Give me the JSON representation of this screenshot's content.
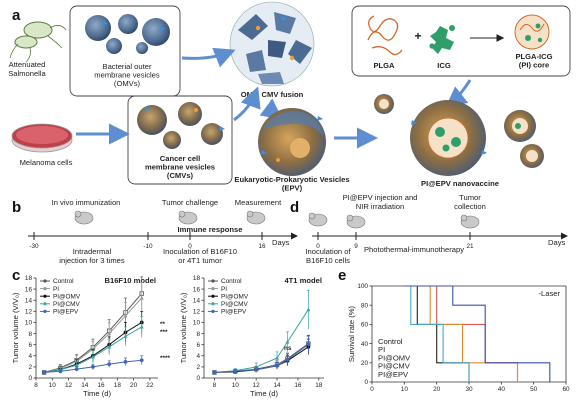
{
  "panel_letters": {
    "a": "a",
    "b": "b",
    "c": "c",
    "d": "d",
    "e": "e"
  },
  "panel_a": {
    "salmonella": "Attenuated\nSalmonella",
    "omv_label": "Bacterial outer\nmembrane vesicles\n(OMVs)",
    "fusion_label": "OMV, CMV fusion",
    "plga": "PLGA",
    "plus": "+",
    "icg": "ICG",
    "core": "PLGA-ICG\n(PI) core",
    "melanoma": "Melanoma cells",
    "cmv_label": "Cancer cell\nmembrane vesicles\n(CMVs)",
    "epv_label": "Eukaryotic-Prokaryotic Vesicles\n(EPV)",
    "vaccine_label": "PI@EPV nanovaccine"
  },
  "panel_b": {
    "in_vivo": "In vivo immunization",
    "challenge": "Tumor challenge",
    "measurement": "Measurement",
    "immune": "Immune response",
    "ticks": [
      "-30",
      "-10",
      "0",
      "16"
    ],
    "unit": "Days",
    "injection": "Intradermal\ninjection for 3 times",
    "inoculation": "Inoculation of B16F10\nor 4T1 tumor"
  },
  "panel_d": {
    "injection": "PI@EPV injection and\nNIR irradiation",
    "collection": "Tumor\ncollection",
    "ticks": [
      "0",
      "9",
      "21"
    ],
    "unit": "Days",
    "inoculation": "Inoculation of\nB16F10 cells",
    "therapy": "Photothermal-immunotherapy"
  },
  "colors": {
    "Control": "#555555",
    "PI": "#999999",
    "PI@OMV": "#111111",
    "PI@CMV": "#3aa6a0",
    "PI@EPV": "#3f66b8",
    "e_Control": "#222222",
    "e_PI": "#d9534f",
    "e_PI@OMV": "#e38a2a",
    "e_PI@CMV": "#4aa5c8",
    "e_PI@EPV": "#3e4fa8"
  },
  "chart_data": [
    {
      "type": "line",
      "title": "B16F10 model",
      "xlabel": "Time (d)",
      "ylabel": "Tumor volume (V/V₀)",
      "xlim": [
        8,
        23
      ],
      "ylim": [
        0,
        18
      ],
      "xticks": [
        8,
        10,
        12,
        14,
        16,
        18,
        20,
        22
      ],
      "yticks": [
        0,
        2,
        4,
        6,
        8,
        10,
        12,
        14,
        16,
        18
      ],
      "legend": "top-left",
      "x": [
        9,
        11,
        13,
        15,
        17,
        19,
        21
      ],
      "series": [
        {
          "name": "Control",
          "values": [
            1,
            1.8,
            3.2,
            5.5,
            8.5,
            11.8,
            15.2
          ],
          "err": [
            0.3,
            0.6,
            1.0,
            1.5,
            2.0,
            2.6,
            3.0
          ]
        },
        {
          "name": "PI",
          "values": [
            1,
            1.7,
            3.0,
            5.2,
            8.0,
            11.2,
            14.4
          ],
          "err": [
            0.3,
            0.6,
            1.0,
            1.4,
            1.9,
            2.4,
            2.8
          ]
        },
        {
          "name": "PI@OMV",
          "values": [
            1,
            1.5,
            2.5,
            4.0,
            6.0,
            8.2,
            10.0
          ],
          "err": [
            0.3,
            0.5,
            0.8,
            1.1,
            1.4,
            1.8,
            2.0
          ]
        },
        {
          "name": "PI@CMV",
          "values": [
            1,
            1.5,
            2.3,
            3.8,
            5.6,
            7.5,
            9.2
          ],
          "err": [
            0.3,
            0.5,
            0.8,
            1.1,
            1.4,
            1.7,
            1.9
          ]
        },
        {
          "name": "PI@EPV",
          "values": [
            1,
            1.2,
            1.6,
            2.0,
            2.5,
            2.9,
            3.2
          ],
          "err": [
            0.2,
            0.3,
            0.4,
            0.5,
            0.6,
            0.7,
            0.8
          ]
        }
      ],
      "annotations": [
        "**",
        "***",
        "****"
      ]
    },
    {
      "type": "line",
      "title": "4T1 model",
      "xlabel": "Time (d)",
      "ylabel": "Tumor volume (V/V₀)",
      "xlim": [
        7,
        18.5
      ],
      "ylim": [
        0,
        18
      ],
      "xticks": [
        8,
        10,
        12,
        14,
        16,
        18
      ],
      "yticks": [
        0,
        2,
        4,
        6,
        8,
        10,
        12,
        14,
        16,
        18
      ],
      "legend": "top-left",
      "x": [
        8,
        10,
        12,
        14,
        15,
        17
      ],
      "series": [
        {
          "name": "Control",
          "values": [
            1,
            1.2,
            1.6,
            2.4,
            3.5,
            6.2
          ],
          "err": [
            0.3,
            0.3,
            0.5,
            0.7,
            1.0,
            1.5
          ]
        },
        {
          "name": "PI",
          "values": [
            1,
            1.2,
            1.5,
            2.3,
            3.3,
            6.0
          ],
          "err": [
            0.3,
            0.3,
            0.5,
            0.7,
            1.0,
            1.5
          ]
        },
        {
          "name": "PI@OMV",
          "values": [
            1,
            1.1,
            1.5,
            2.2,
            3.1,
            5.6
          ],
          "err": [
            0.3,
            0.3,
            0.5,
            0.6,
            0.9,
            1.4
          ]
        },
        {
          "name": "PI@CMV",
          "values": [
            1,
            1.3,
            2.0,
            3.6,
            6.5,
            12.3
          ],
          "err": [
            0.3,
            0.4,
            0.7,
            1.1,
            1.8,
            3.5
          ]
        },
        {
          "name": "PI@EPV",
          "values": [
            1,
            1.2,
            1.5,
            2.2,
            3.3,
            6.1
          ],
          "err": [
            0.3,
            0.3,
            0.5,
            0.6,
            1.0,
            1.5
          ]
        }
      ],
      "annotations": [
        "ns"
      ]
    },
    {
      "type": "line",
      "title": "-Laser",
      "xlabel": "",
      "ylabel": "Survival rate (%)",
      "xlim": [
        0,
        60
      ],
      "ylim": [
        0,
        100
      ],
      "xticks": [
        0,
        10,
        20,
        30,
        40,
        50,
        60
      ],
      "yticks": [
        0,
        20,
        40,
        60,
        80,
        100
      ],
      "legend": "bottom-left",
      "series": [
        {
          "name": "Control",
          "steps": [
            [
              10,
              100
            ],
            [
              14,
              60
            ],
            [
              20,
              20
            ],
            [
              30,
              20
            ],
            [
              30,
              0
            ]
          ]
        },
        {
          "name": "PI",
          "steps": [
            [
              10,
              100
            ],
            [
              20,
              60
            ],
            [
              35,
              20
            ],
            [
              45,
              20
            ],
            [
              45,
              0
            ]
          ]
        },
        {
          "name": "PI@OMV",
          "steps": [
            [
              10,
              100
            ],
            [
              18,
              60
            ],
            [
              28,
              20
            ],
            [
              45,
              20
            ],
            [
              45,
              0
            ]
          ]
        },
        {
          "name": "PI@CMV",
          "steps": [
            [
              10,
              100
            ],
            [
              12,
              60
            ],
            [
              22,
              20
            ],
            [
              30,
              20
            ],
            [
              30,
              0
            ]
          ]
        },
        {
          "name": "PI@EPV",
          "steps": [
            [
              10,
              100
            ],
            [
              25,
              80
            ],
            [
              35,
              20
            ],
            [
              55,
              20
            ],
            [
              55,
              0
            ]
          ]
        }
      ]
    }
  ]
}
